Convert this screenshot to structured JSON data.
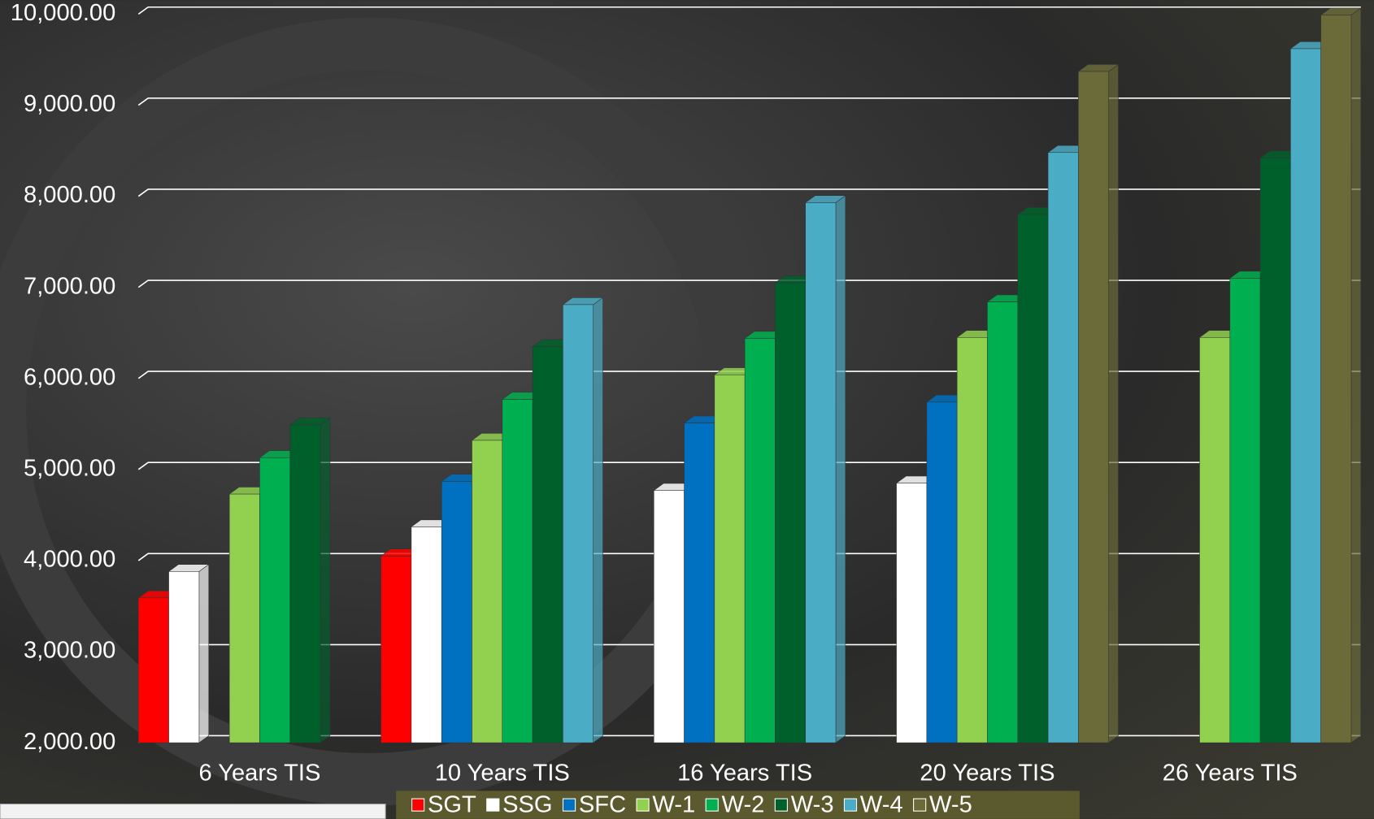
{
  "chart_data": {
    "type": "bar3d",
    "categories": [
      "6 Years TIS",
      "10 Years TIS",
      "16 Years TIS",
      "20 Years TIS",
      "26 Years TIS"
    ],
    "series": [
      {
        "name": "SGT",
        "color": "#ff0000",
        "values": [
          3590,
          4050,
          null,
          null,
          null
        ]
      },
      {
        "name": "SSG",
        "color": "#ffffff",
        "values": [
          3880,
          4370,
          4770,
          4850,
          null
        ]
      },
      {
        "name": "SFC",
        "color": "#0070c0",
        "values": [
          null,
          4870,
          5510,
          5740,
          null
        ]
      },
      {
        "name": "W-1",
        "color": "#92d050",
        "values": [
          4730,
          5320,
          6040,
          6450,
          6450
        ]
      },
      {
        "name": "W-2",
        "color": "#00b050",
        "values": [
          5130,
          5770,
          6440,
          6840,
          7100
        ]
      },
      {
        "name": "W-3",
        "color": "#00602b",
        "values": [
          5490,
          6350,
          7050,
          7800,
          8420
        ]
      },
      {
        "name": "W-4",
        "color": "#4bacc6",
        "values": [
          null,
          6810,
          7930,
          8480,
          9620
        ]
      },
      {
        "name": "W-5",
        "color": "#6b6b3a",
        "values": [
          null,
          null,
          null,
          9370,
          9990
        ]
      }
    ],
    "ylim": [
      2000,
      10000
    ],
    "yticks": [
      {
        "value": 2000,
        "label": "2,000.00"
      },
      {
        "value": 3000,
        "label": "3,000.00"
      },
      {
        "value": 4000,
        "label": "4,000.00"
      },
      {
        "value": 5000,
        "label": "5,000.00"
      },
      {
        "value": 6000,
        "label": "6,000.00"
      },
      {
        "value": 7000,
        "label": "7,000.00"
      },
      {
        "value": 8000,
        "label": "8,000.00"
      },
      {
        "value": 9000,
        "label": "9,000.00"
      },
      {
        "value": 10000,
        "label": "10,000.00"
      }
    ],
    "grid": true,
    "legend": "bottom"
  }
}
